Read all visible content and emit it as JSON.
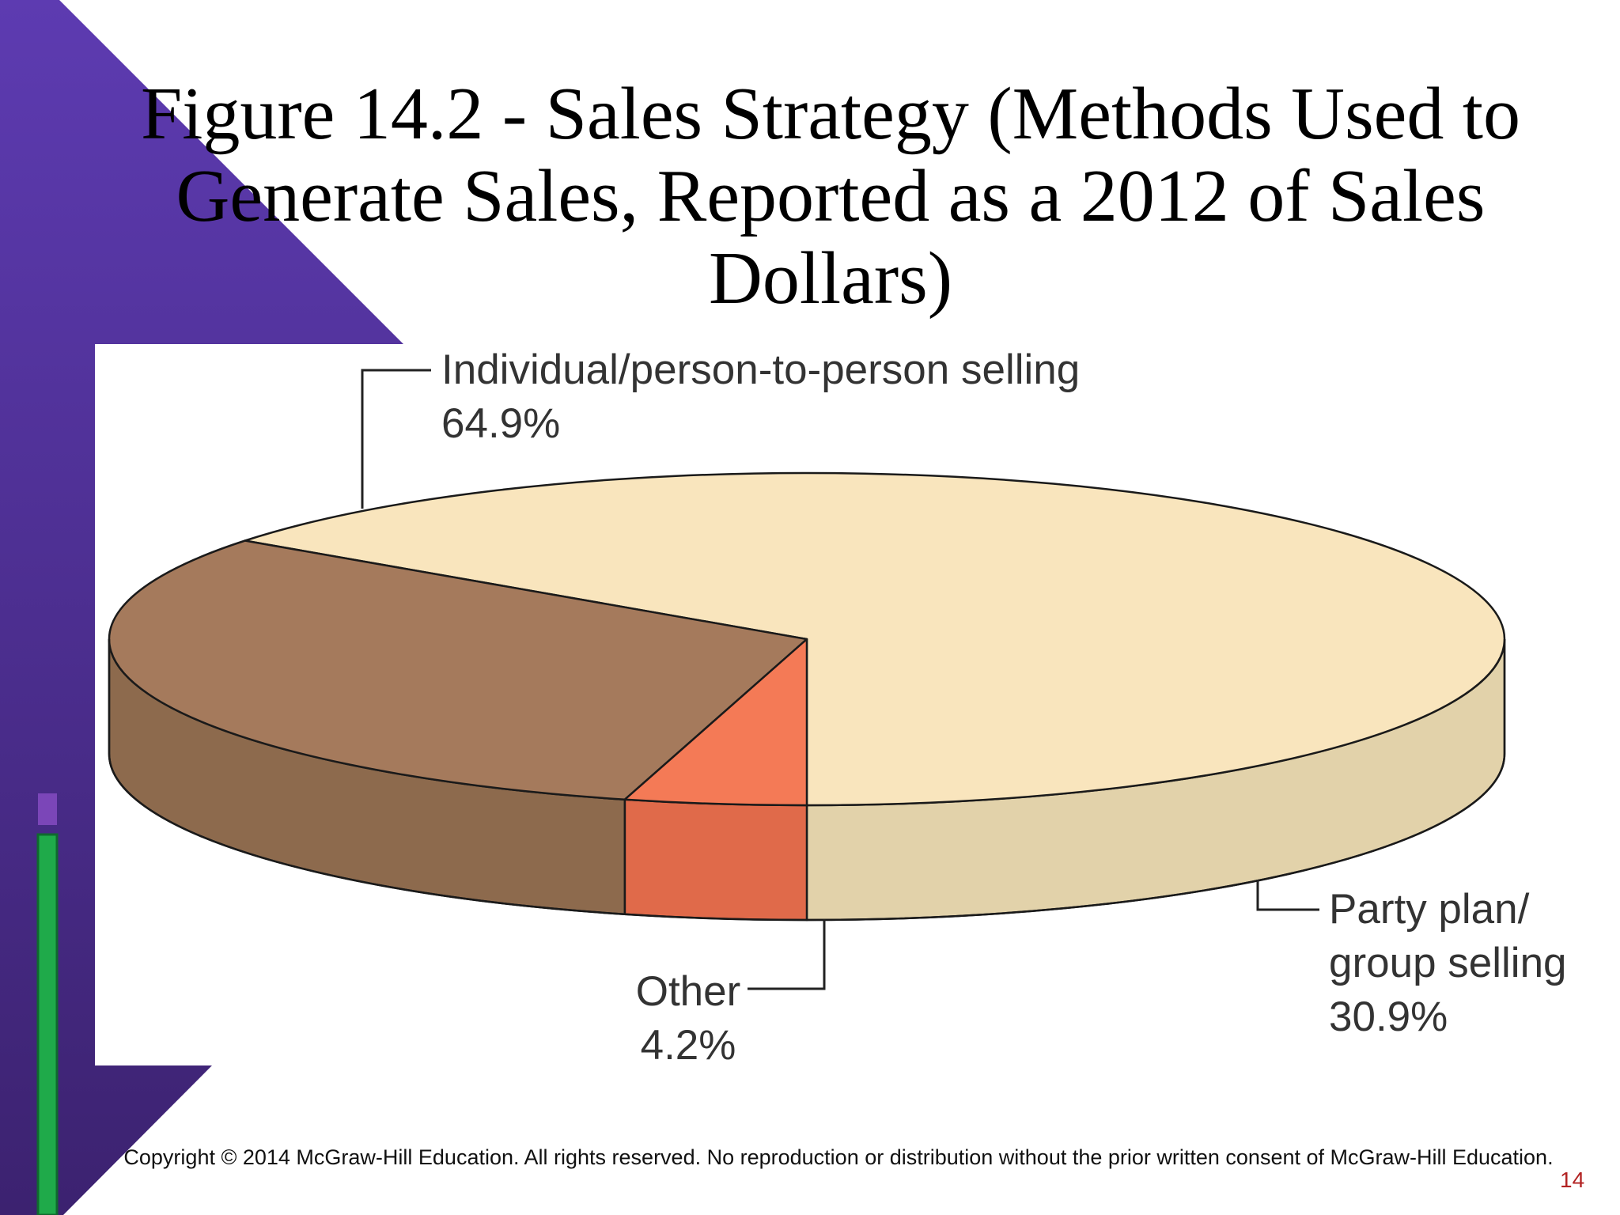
{
  "slide": {
    "title_lines": [
      "Figure 14.2 - Sales Strategy (Methods Used to",
      "Generate Sales, Reported as a 2012 of Sales Dollars)"
    ],
    "copyright": "Copyright © 2014 McGraw-Hill Education.  All rights reserved. No reproduction or distribution without the prior written consent of McGraw-Hill Education.",
    "slide_number": "14",
    "colors": {
      "purple": "#5a34a6",
      "green": "#1faa4a"
    }
  },
  "chart_data": {
    "type": "pie",
    "title": "Figure 14.2 - Sales Strategy (Methods Used to Generate Sales, Reported as a 2012 of Sales Dollars)",
    "style": "3d",
    "slices": [
      {
        "label_lines": [
          "Individual/person-to-person selling"
        ],
        "value_label": "64.9%",
        "value": 64.9,
        "top_color": "#f9e5bd",
        "side_color": "#e2d2aa"
      },
      {
        "label_lines": [
          "Party plan/",
          "group selling"
        ],
        "value_label": "30.9%",
        "value": 30.9,
        "top_color": "#a57a5c",
        "side_color": "#8d6a4d"
      },
      {
        "label_lines": [
          "Other"
        ],
        "value_label": "4.2%",
        "value": 4.2,
        "top_color": "#f47a56",
        "side_color": "#e06a4a"
      }
    ]
  }
}
